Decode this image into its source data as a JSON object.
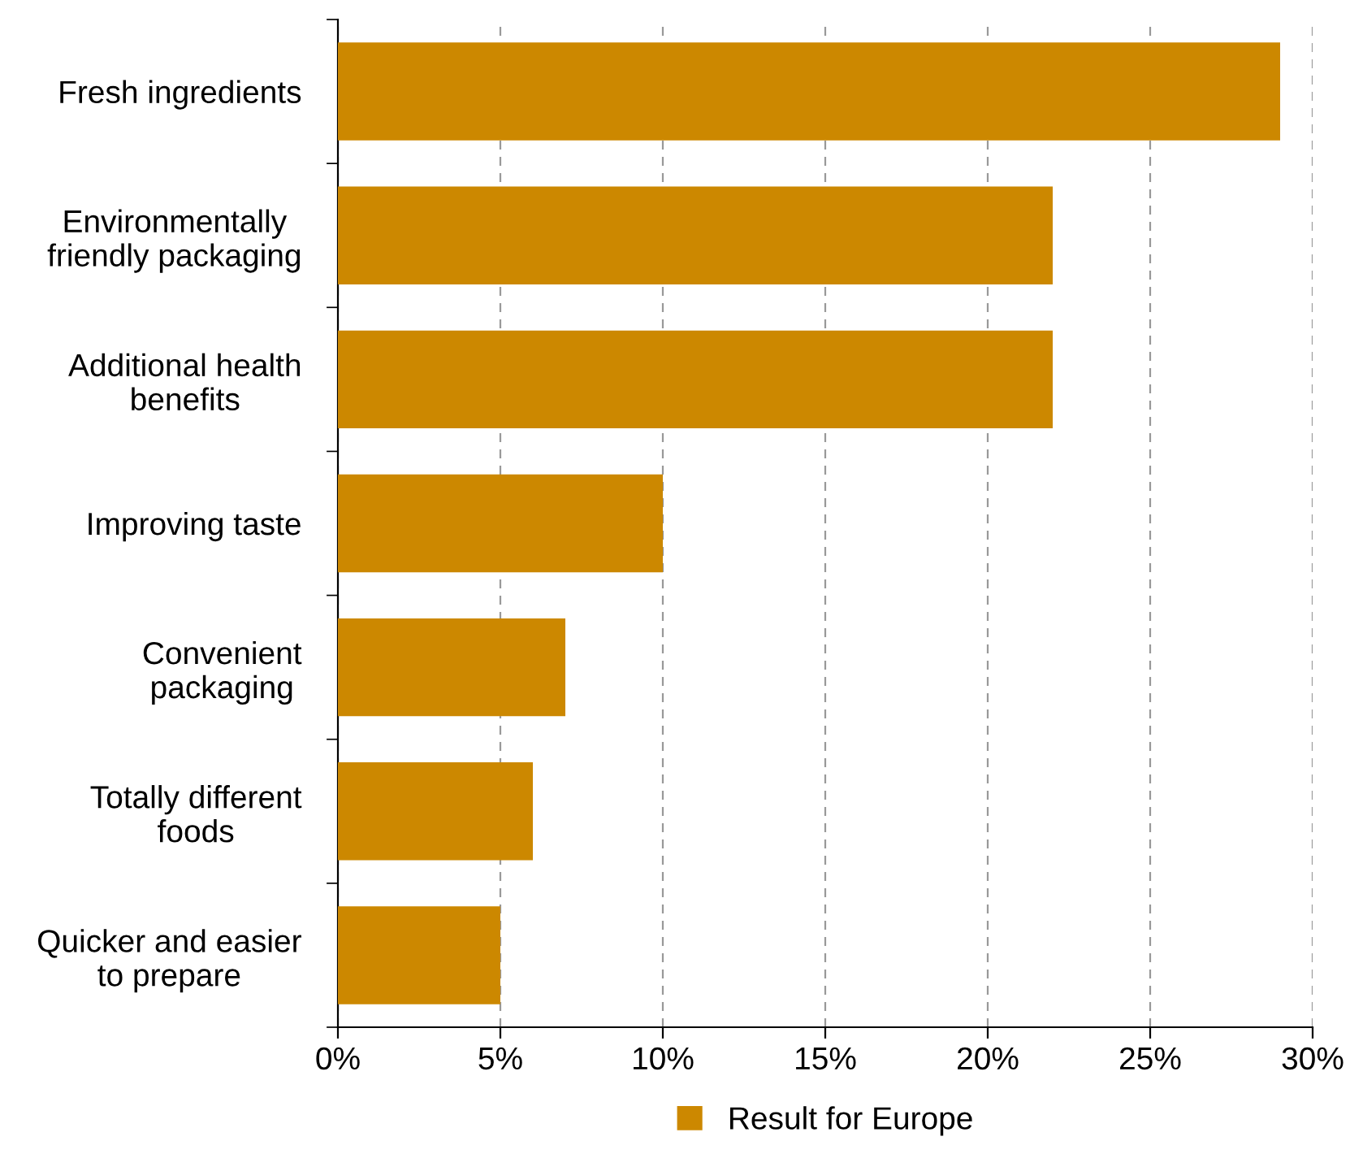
{
  "chart_data": {
    "type": "bar",
    "orientation": "horizontal",
    "categories": [
      "Fresh ingredients",
      "Environmentally\nfriendly packaging",
      "Additional health\nbenefits",
      "Improving taste",
      "Convenient\npackaging",
      "Totally different\nfoods",
      "Quicker and easier\nto prepare"
    ],
    "series": [
      {
        "name": "Result for Europe",
        "color": "#cc8800",
        "values": [
          29,
          22,
          22,
          10,
          7,
          6,
          5
        ]
      }
    ],
    "xlim": [
      0,
      30
    ],
    "xticks": [
      {
        "value": 0,
        "label": "0%"
      },
      {
        "value": 5,
        "label": "5%"
      },
      {
        "value": 10,
        "label": "10%"
      },
      {
        "value": 15,
        "label": "15%"
      },
      {
        "value": 20,
        "label": "20%"
      },
      {
        "value": 25,
        "label": "25%"
      },
      {
        "value": 30,
        "label": "30%"
      }
    ],
    "grid": "x",
    "legend": "bottom"
  }
}
